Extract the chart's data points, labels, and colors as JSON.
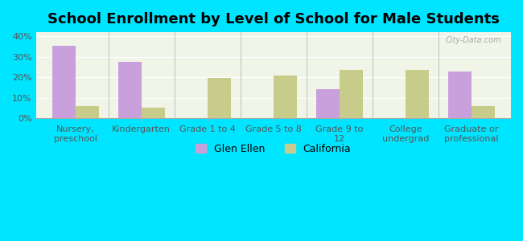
{
  "title": "School Enrollment by Level of School for Male Students",
  "categories": [
    "Nursery,\npreschool",
    "Kindergarten",
    "Grade 1 to 4",
    "Grade 5 to 8",
    "Grade 9 to\n12",
    "College\nundergrad",
    "Graduate or\nprofessional"
  ],
  "glen_ellen": [
    35.5,
    27.5,
    0,
    0,
    14.0,
    0,
    23.0
  ],
  "california": [
    6.0,
    5.0,
    19.5,
    21.0,
    23.5,
    23.5,
    6.0
  ],
  "glen_ellen_color": "#c9a0dc",
  "california_color": "#c8cc8a",
  "bg_color": "#00e5ff",
  "plot_bg_color": "#f0f5e8",
  "ylim": [
    0,
    42
  ],
  "yticks": [
    0,
    10,
    20,
    30,
    40
  ],
  "ytick_labels": [
    "0%",
    "10%",
    "20%",
    "30%",
    "40%"
  ],
  "bar_width": 0.35,
  "legend_labels": [
    "Glen Ellen",
    "California"
  ],
  "title_fontsize": 13,
  "tick_fontsize": 8,
  "legend_fontsize": 9
}
